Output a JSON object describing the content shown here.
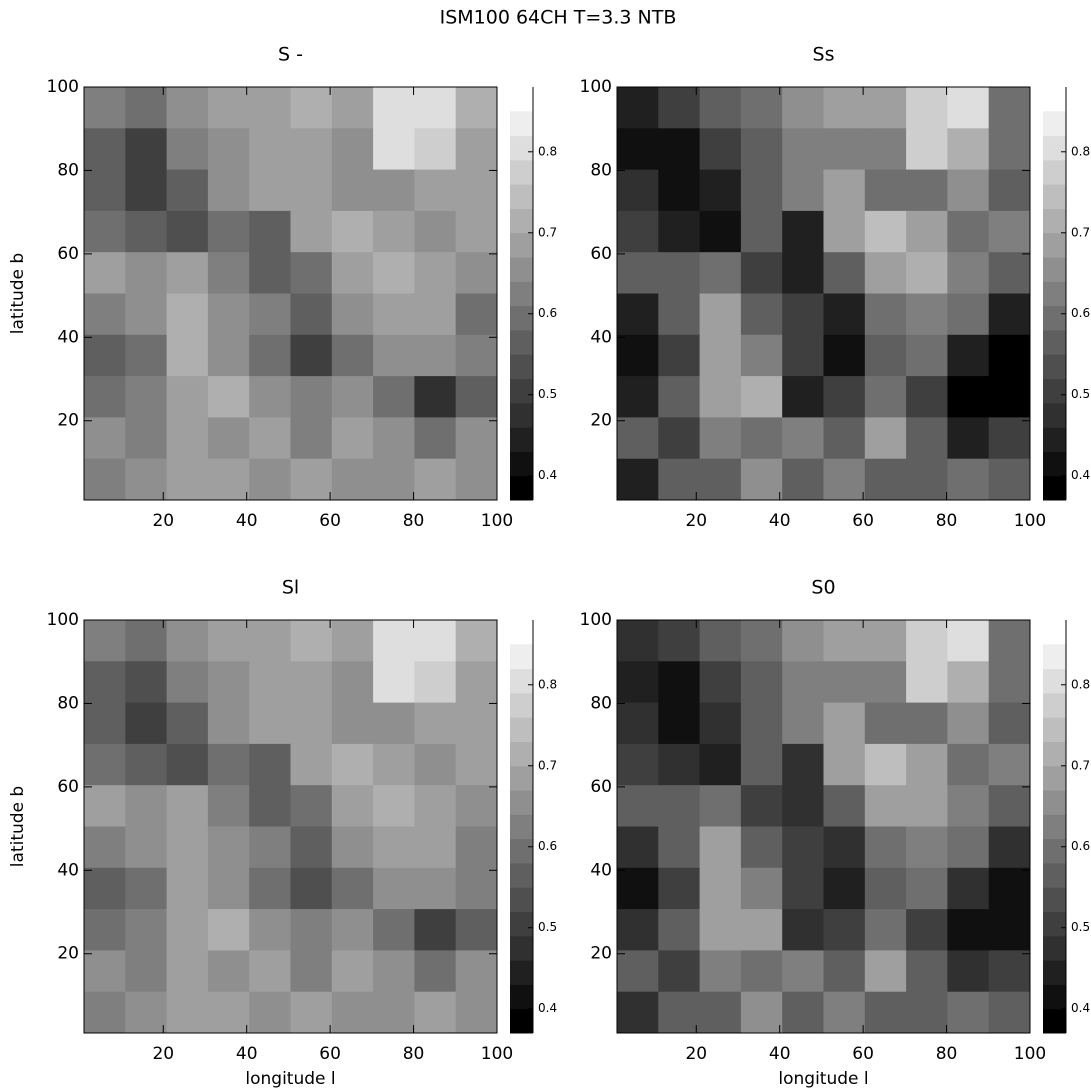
{
  "title": "ISM100  64CH  T=3.3  NTB",
  "chart_data": [
    {
      "type": "heatmap",
      "title": "S  -",
      "y_label": "latitude b",
      "xlim": [
        1,
        100
      ],
      "ylim": [
        1,
        100
      ],
      "xticks": [
        20,
        40,
        60,
        80,
        100
      ],
      "yticks": [
        20,
        40,
        60,
        80,
        100
      ],
      "clim": [
        0.37,
        0.85
      ],
      "color_levels": 16,
      "colorbar_lim": [
        0.37,
        0.88
      ],
      "colorbar_ticks": [
        0.4,
        0.5,
        0.6,
        0.7,
        0.8
      ],
      "values": [
        [
          0.62,
          0.6,
          0.65,
          0.68,
          0.7,
          0.72,
          0.7,
          0.8,
          0.82,
          0.72
        ],
        [
          0.55,
          0.5,
          0.62,
          0.66,
          0.7,
          0.68,
          0.66,
          0.82,
          0.78,
          0.7
        ],
        [
          0.58,
          0.5,
          0.55,
          0.65,
          0.68,
          0.7,
          0.66,
          0.65,
          0.7,
          0.68
        ],
        [
          0.6,
          0.55,
          0.52,
          0.6,
          0.55,
          0.7,
          0.72,
          0.7,
          0.66,
          0.68
        ],
        [
          0.68,
          0.65,
          0.68,
          0.62,
          0.55,
          0.6,
          0.7,
          0.72,
          0.68,
          0.65
        ],
        [
          0.62,
          0.66,
          0.72,
          0.65,
          0.62,
          0.55,
          0.65,
          0.68,
          0.7,
          0.6
        ],
        [
          0.55,
          0.6,
          0.72,
          0.66,
          0.6,
          0.5,
          0.6,
          0.66,
          0.65,
          0.62
        ],
        [
          0.6,
          0.62,
          0.7,
          0.72,
          0.65,
          0.62,
          0.66,
          0.6,
          0.48,
          0.55
        ],
        [
          0.66,
          0.62,
          0.68,
          0.66,
          0.68,
          0.62,
          0.7,
          0.66,
          0.6,
          0.64
        ],
        [
          0.62,
          0.65,
          0.68,
          0.7,
          0.66,
          0.68,
          0.66,
          0.64,
          0.68,
          0.66
        ]
      ]
    },
    {
      "type": "heatmap",
      "title": "Ss",
      "xlim": [
        1,
        100
      ],
      "ylim": [
        1,
        100
      ],
      "xticks": [
        20,
        40,
        60,
        80,
        100
      ],
      "yticks": [
        20,
        40,
        60,
        80,
        100
      ],
      "clim": [
        0.37,
        0.85
      ],
      "color_levels": 16,
      "colorbar_lim": [
        0.37,
        0.88
      ],
      "colorbar_ticks": [
        0.4,
        0.5,
        0.6,
        0.7,
        0.8
      ],
      "values": [
        [
          0.45,
          0.5,
          0.55,
          0.6,
          0.65,
          0.7,
          0.68,
          0.78,
          0.82,
          0.6
        ],
        [
          0.42,
          0.4,
          0.5,
          0.55,
          0.62,
          0.62,
          0.62,
          0.78,
          0.72,
          0.6
        ],
        [
          0.48,
          0.4,
          0.45,
          0.55,
          0.62,
          0.68,
          0.6,
          0.6,
          0.65,
          0.55
        ],
        [
          0.5,
          0.45,
          0.42,
          0.55,
          0.45,
          0.68,
          0.75,
          0.68,
          0.6,
          0.62
        ],
        [
          0.55,
          0.55,
          0.6,
          0.5,
          0.45,
          0.55,
          0.68,
          0.72,
          0.62,
          0.55
        ],
        [
          0.45,
          0.55,
          0.68,
          0.55,
          0.5,
          0.45,
          0.6,
          0.62,
          0.6,
          0.45
        ],
        [
          0.4,
          0.5,
          0.68,
          0.62,
          0.5,
          0.42,
          0.55,
          0.6,
          0.45,
          0.38
        ],
        [
          0.45,
          0.55,
          0.7,
          0.72,
          0.45,
          0.5,
          0.6,
          0.5,
          0.38,
          0.38
        ],
        [
          0.55,
          0.5,
          0.62,
          0.6,
          0.62,
          0.55,
          0.68,
          0.55,
          0.45,
          0.5
        ],
        [
          0.45,
          0.55,
          0.58,
          0.65,
          0.55,
          0.62,
          0.58,
          0.55,
          0.6,
          0.55
        ]
      ]
    },
    {
      "type": "heatmap",
      "title": "Sl",
      "x_label": "longitude l",
      "y_label": "latitude b",
      "xlim": [
        1,
        100
      ],
      "ylim": [
        1,
        100
      ],
      "xticks": [
        20,
        40,
        60,
        80,
        100
      ],
      "yticks": [
        20,
        40,
        60,
        80,
        100
      ],
      "clim": [
        0.37,
        0.85
      ],
      "color_levels": 16,
      "colorbar_lim": [
        0.37,
        0.88
      ],
      "colorbar_ticks": [
        0.4,
        0.5,
        0.6,
        0.7,
        0.8
      ],
      "values": [
        [
          0.62,
          0.6,
          0.64,
          0.68,
          0.7,
          0.72,
          0.7,
          0.8,
          0.8,
          0.72
        ],
        [
          0.55,
          0.52,
          0.62,
          0.66,
          0.68,
          0.68,
          0.66,
          0.8,
          0.78,
          0.7
        ],
        [
          0.57,
          0.5,
          0.56,
          0.64,
          0.68,
          0.7,
          0.66,
          0.66,
          0.7,
          0.68
        ],
        [
          0.6,
          0.56,
          0.53,
          0.6,
          0.56,
          0.7,
          0.72,
          0.7,
          0.66,
          0.68
        ],
        [
          0.68,
          0.64,
          0.67,
          0.62,
          0.56,
          0.6,
          0.7,
          0.72,
          0.68,
          0.66
        ],
        [
          0.62,
          0.66,
          0.7,
          0.65,
          0.62,
          0.56,
          0.65,
          0.68,
          0.7,
          0.61
        ],
        [
          0.56,
          0.6,
          0.7,
          0.66,
          0.6,
          0.52,
          0.6,
          0.66,
          0.65,
          0.62
        ],
        [
          0.6,
          0.62,
          0.7,
          0.72,
          0.64,
          0.62,
          0.66,
          0.6,
          0.5,
          0.56
        ],
        [
          0.65,
          0.62,
          0.68,
          0.66,
          0.68,
          0.62,
          0.7,
          0.66,
          0.6,
          0.64
        ],
        [
          0.62,
          0.65,
          0.67,
          0.7,
          0.66,
          0.68,
          0.66,
          0.64,
          0.67,
          0.66
        ]
      ]
    },
    {
      "type": "heatmap",
      "title": "S0",
      "x_label": "longitude l",
      "xlim": [
        1,
        100
      ],
      "ylim": [
        1,
        100
      ],
      "xticks": [
        20,
        40,
        60,
        80,
        100
      ],
      "yticks": [
        20,
        40,
        60,
        80,
        100
      ],
      "clim": [
        0.37,
        0.85
      ],
      "color_levels": 16,
      "colorbar_lim": [
        0.37,
        0.88
      ],
      "colorbar_ticks": [
        0.4,
        0.5,
        0.6,
        0.7,
        0.8
      ],
      "values": [
        [
          0.46,
          0.5,
          0.55,
          0.6,
          0.65,
          0.7,
          0.68,
          0.76,
          0.8,
          0.6
        ],
        [
          0.43,
          0.42,
          0.5,
          0.56,
          0.62,
          0.62,
          0.62,
          0.76,
          0.72,
          0.6
        ],
        [
          0.48,
          0.42,
          0.46,
          0.55,
          0.62,
          0.67,
          0.6,
          0.6,
          0.65,
          0.56
        ],
        [
          0.5,
          0.46,
          0.44,
          0.55,
          0.46,
          0.67,
          0.74,
          0.68,
          0.6,
          0.62
        ],
        [
          0.55,
          0.55,
          0.6,
          0.5,
          0.46,
          0.55,
          0.68,
          0.7,
          0.62,
          0.56
        ],
        [
          0.46,
          0.55,
          0.67,
          0.55,
          0.5,
          0.46,
          0.6,
          0.62,
          0.6,
          0.46
        ],
        [
          0.42,
          0.5,
          0.67,
          0.62,
          0.5,
          0.44,
          0.55,
          0.6,
          0.46,
          0.4
        ],
        [
          0.46,
          0.55,
          0.7,
          0.7,
          0.46,
          0.5,
          0.6,
          0.5,
          0.4,
          0.4
        ],
        [
          0.55,
          0.5,
          0.62,
          0.6,
          0.62,
          0.55,
          0.67,
          0.55,
          0.46,
          0.5
        ],
        [
          0.46,
          0.55,
          0.58,
          0.64,
          0.55,
          0.62,
          0.58,
          0.55,
          0.6,
          0.55
        ]
      ]
    }
  ]
}
